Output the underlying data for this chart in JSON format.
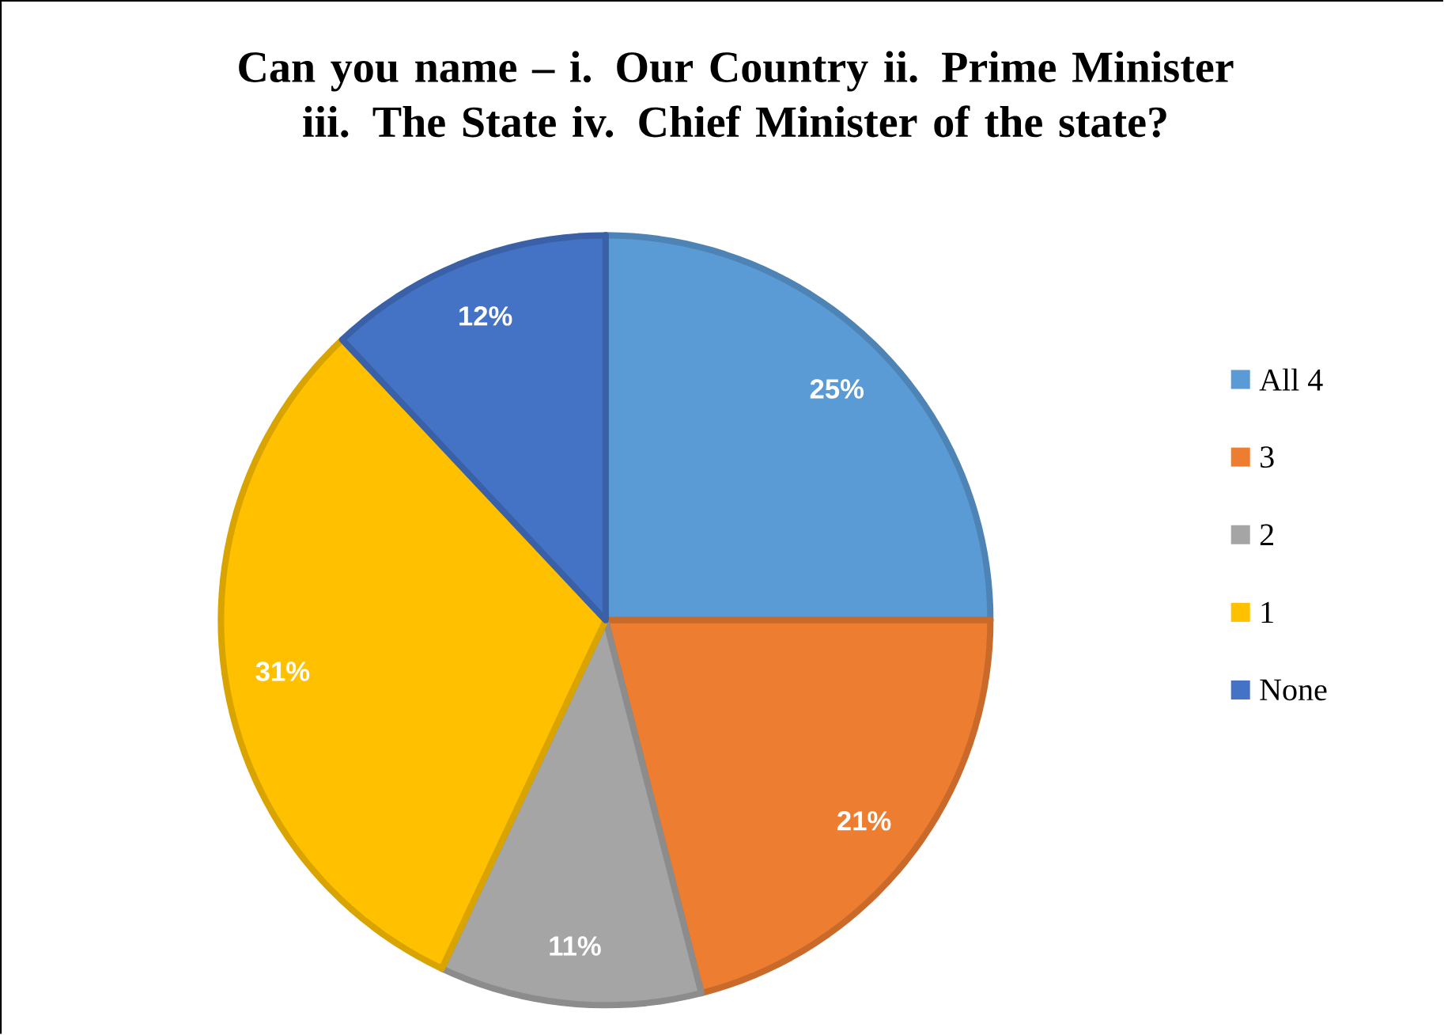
{
  "chart_data": {
    "type": "pie",
    "title": "Can you name – i. Our Country ii. Prime Minister iii. The State iv. Chief Minister of the state?",
    "categories": [
      "All 4",
      "3",
      "2",
      "1",
      "None"
    ],
    "values": [
      25,
      21,
      11,
      31,
      12
    ],
    "value_labels": [
      "25%",
      "21%",
      "11%",
      "31%",
      "12%"
    ],
    "colors": [
      "#5b9bd5",
      "#ed7d31",
      "#a5a5a5",
      "#ffc000",
      "#4472c4"
    ],
    "legend": "right"
  }
}
